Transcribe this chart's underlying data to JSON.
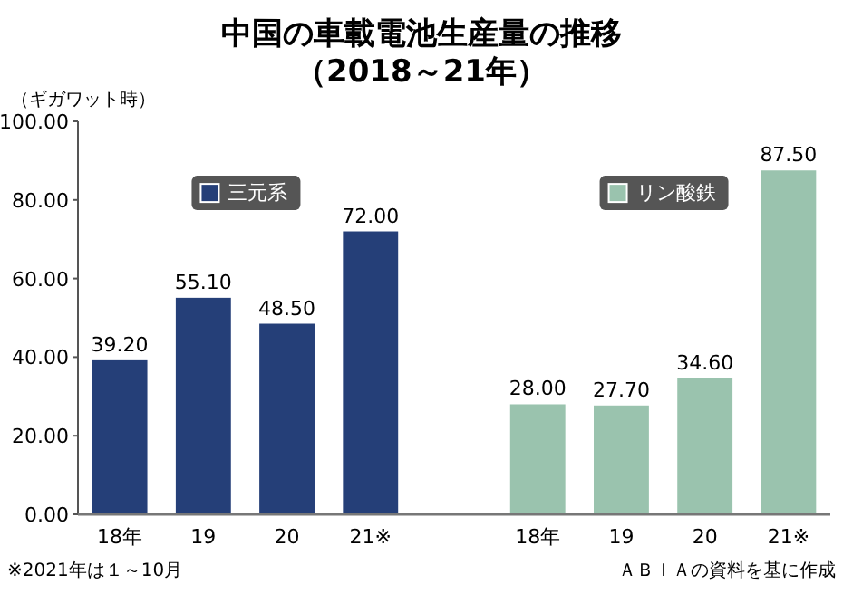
{
  "chart_data": {
    "type": "bar",
    "title": "中国の車載電池生産量の推移",
    "subtitle": "（2018～21年）",
    "ylabel": "（ギガワット時）",
    "categories": [
      "18年",
      "19",
      "20",
      "21※",
      null,
      "18年",
      "19",
      "20",
      "21※"
    ],
    "series": [
      {
        "name": "三元系",
        "color": "#253f78",
        "values": [
          39.2,
          55.1,
          48.5,
          72.0,
          null,
          null,
          null,
          null,
          null
        ],
        "value_labels": [
          "39.20",
          "55.10",
          "48.50",
          "72.00",
          null,
          null,
          null,
          null,
          null
        ]
      },
      {
        "name": "リン酸鉄",
        "color": "#9ac3ae",
        "values": [
          null,
          null,
          null,
          null,
          null,
          28.0,
          27.7,
          34.6,
          87.5
        ],
        "value_labels": [
          null,
          null,
          null,
          null,
          null,
          "28.00",
          "27.70",
          "34.60",
          "87.50"
        ]
      }
    ],
    "ylim": [
      0,
      100
    ],
    "legend": "top",
    "yticks": [
      {
        "value": 0,
        "label": "0.00"
      },
      {
        "value": 20,
        "label": "20.00"
      },
      {
        "value": 40,
        "label": "40.00"
      },
      {
        "value": 60,
        "label": "60.00"
      },
      {
        "value": 80,
        "label": "80.00"
      },
      {
        "value": 100,
        "label": "100.00"
      }
    ],
    "annotations": [
      "※2021年は１～10月",
      "ＡＢＩＡの資料を基に作成"
    ]
  }
}
